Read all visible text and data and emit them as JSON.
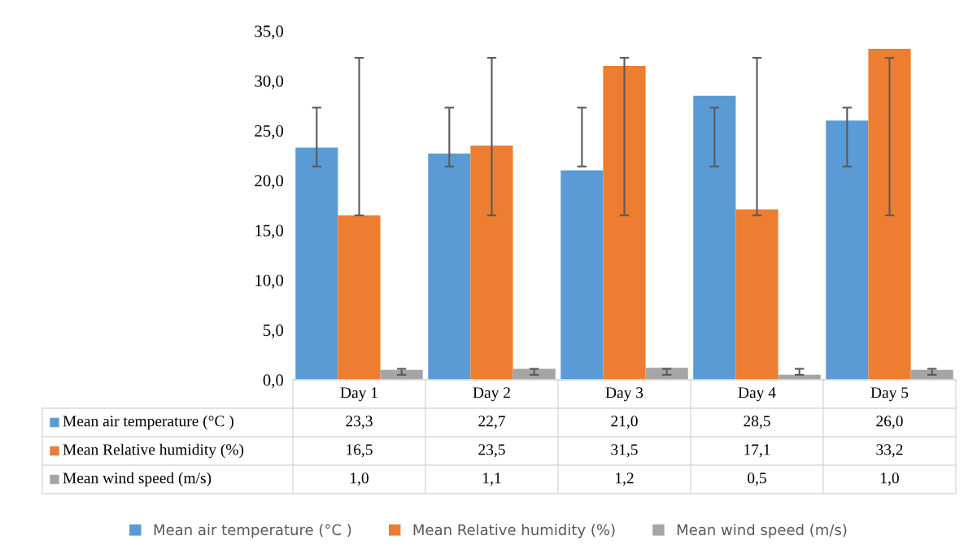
{
  "chart_data": {
    "type": "bar",
    "categories": [
      "Day 1",
      "Day 2",
      "Day 3",
      "Day 4",
      "Day 5"
    ],
    "series": [
      {
        "name": "Mean air temperature (°C )",
        "color": "#5b9bd5",
        "values": [
          23.3,
          22.7,
          21.0,
          28.5,
          26.0
        ],
        "value_labels": [
          "23,3",
          "22,7",
          "21,0",
          "28,5",
          "26,0"
        ],
        "errors": [
          [
            21.4,
            27.3
          ],
          [
            21.4,
            27.3
          ],
          [
            21.4,
            27.3
          ],
          [
            21.4,
            27.3
          ],
          [
            21.4,
            27.3
          ]
        ]
      },
      {
        "name": "Mean Relative humidity (%)",
        "color": "#ed7d31",
        "values": [
          16.5,
          23.5,
          31.5,
          17.1,
          33.2
        ],
        "value_labels": [
          "16,5",
          "23,5",
          "31,5",
          "17,1",
          "33,2"
        ],
        "errors": [
          [
            16.5,
            32.3
          ],
          [
            16.5,
            32.3
          ],
          [
            16.5,
            32.3
          ],
          [
            16.5,
            32.3
          ],
          [
            16.5,
            32.3
          ]
        ]
      },
      {
        "name": "Mean wind speed (m/s)",
        "color": "#a5a5a5",
        "values": [
          1.0,
          1.1,
          1.2,
          0.5,
          1.0
        ],
        "value_labels": [
          "1,0",
          "1,1",
          "1,2",
          "0,5",
          "1,0"
        ],
        "errors": [
          [
            0.5,
            1.1
          ],
          [
            0.5,
            1.1
          ],
          [
            0.5,
            1.1
          ],
          [
            0.5,
            1.1
          ],
          [
            0.5,
            1.1
          ]
        ]
      }
    ],
    "ylim": [
      0,
      35
    ],
    "yticks": [
      {
        "value": 0,
        "label": "0,0"
      },
      {
        "value": 5,
        "label": "5,0"
      },
      {
        "value": 10,
        "label": "10,0"
      },
      {
        "value": 15,
        "label": "15,0"
      },
      {
        "value": 20,
        "label": "20,0"
      },
      {
        "value": 25,
        "label": "25,0"
      },
      {
        "value": 30,
        "label": "30,0"
      },
      {
        "value": 35,
        "label": "35,0"
      }
    ],
    "grid": false,
    "legend": "bottom"
  }
}
